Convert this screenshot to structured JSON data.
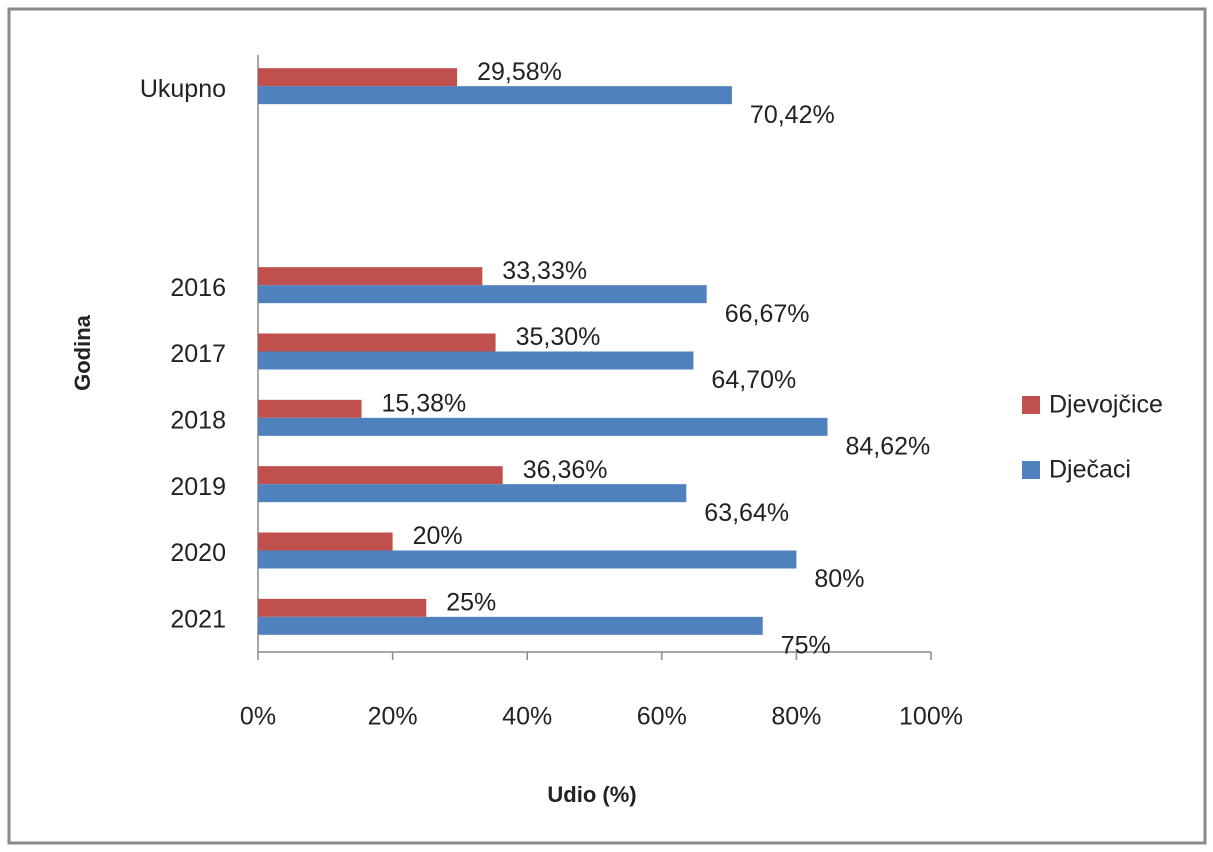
{
  "chart_data": {
    "type": "bar",
    "orientation": "horizontal",
    "xlabel": "Udio (%)",
    "ylabel": "Godina",
    "categories": [
      "Ukupno",
      null,
      null,
      "2016",
      "2017",
      "2018",
      "2019",
      "2020",
      "2021"
    ],
    "series": [
      {
        "name": "Djevojčice",
        "color": "#c0504d",
        "values": [
          29.58,
          null,
          null,
          33.33,
          35.3,
          15.38,
          36.36,
          20,
          25
        ],
        "value_labels": [
          "29,58%",
          null,
          null,
          "33,33%",
          "35,30%",
          "15,38%",
          "36,36%",
          "20%",
          "25%"
        ]
      },
      {
        "name": "Dječaci",
        "color": "#4f81bd",
        "values": [
          70.42,
          null,
          null,
          66.67,
          64.7,
          84.62,
          63.64,
          80,
          75
        ],
        "value_labels": [
          "70,42%",
          null,
          null,
          "66,67%",
          "64,70%",
          "84,62%",
          "63,64%",
          "80%",
          "75%"
        ]
      }
    ],
    "xlim": [
      0,
      100
    ],
    "xticks": [
      {
        "value": 0,
        "label": "0%"
      },
      {
        "value": 20,
        "label": "20%"
      },
      {
        "value": 40,
        "label": "40%"
      },
      {
        "value": 60,
        "label": "60%"
      },
      {
        "value": 80,
        "label": "80%"
      },
      {
        "value": 100,
        "label": "100%"
      }
    ],
    "legend": "right"
  }
}
